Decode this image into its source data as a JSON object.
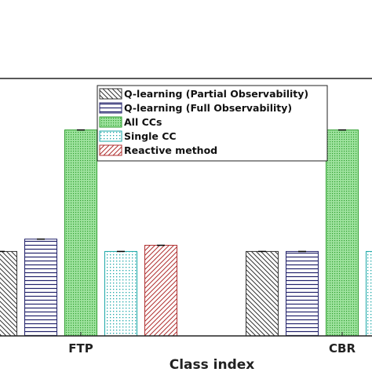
{
  "chart_data": {
    "type": "bar",
    "categories": [
      "FTP",
      "CBR"
    ],
    "xlabel": "Class index",
    "ylabel": "",
    "title": "",
    "ylim": [
      0,
      1.25
    ],
    "legend_position": "top-center",
    "series": [
      {
        "name": "Q-learning (Partial Observability)",
        "pattern": "diag-back",
        "color": "#333333",
        "values": [
          0.41,
          0.41
        ]
      },
      {
        "name": "Q-learning (Full Observability)",
        "pattern": "horizontal",
        "color": "#22226b",
        "values": [
          0.47,
          0.41
        ]
      },
      {
        "name": "All CCs",
        "pattern": "dots-green",
        "color": "#2e9e2e",
        "values": [
          1.0,
          1.0
        ]
      },
      {
        "name": "Single CC",
        "pattern": "dots-cyan",
        "color": "#1aa7a7",
        "values": [
          0.41,
          0.41
        ]
      },
      {
        "name": "Reactive method",
        "pattern": "diag-fwd",
        "color": "#b03030",
        "values": [
          0.44,
          null
        ]
      }
    ]
  }
}
